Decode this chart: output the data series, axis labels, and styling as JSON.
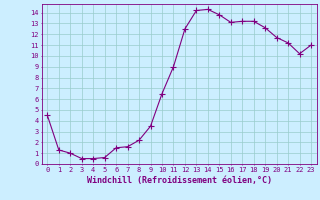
{
  "x": [
    0,
    1,
    2,
    3,
    4,
    5,
    6,
    7,
    8,
    9,
    10,
    11,
    12,
    13,
    14,
    15,
    16,
    17,
    18,
    19,
    20,
    21,
    22,
    23
  ],
  "y": [
    4.5,
    1.3,
    1.0,
    0.5,
    0.5,
    0.6,
    1.5,
    1.6,
    2.2,
    3.5,
    6.5,
    9.0,
    12.5,
    14.2,
    14.3,
    13.8,
    13.1,
    13.2,
    13.2,
    12.6,
    11.7,
    11.2,
    10.2,
    11.0
  ],
  "line_color": "#800080",
  "marker": "+",
  "marker_size": 4,
  "bg_color": "#cceeff",
  "grid_color": "#99cccc",
  "xlabel": "Windchill (Refroidissement éolien,°C)",
  "xlim": [
    -0.5,
    23.5
  ],
  "ylim": [
    0,
    14.8
  ],
  "xticks": [
    0,
    1,
    2,
    3,
    4,
    5,
    6,
    7,
    8,
    9,
    10,
    11,
    12,
    13,
    14,
    15,
    16,
    17,
    18,
    19,
    20,
    21,
    22,
    23
  ],
  "yticks": [
    0,
    1,
    2,
    3,
    4,
    5,
    6,
    7,
    8,
    9,
    10,
    11,
    12,
    13,
    14
  ],
  "tick_fontsize": 5.0,
  "xlabel_fontsize": 6.0,
  "label_color": "#800080",
  "spine_color": "#800080",
  "line_width": 0.8,
  "marker_color": "#800080"
}
